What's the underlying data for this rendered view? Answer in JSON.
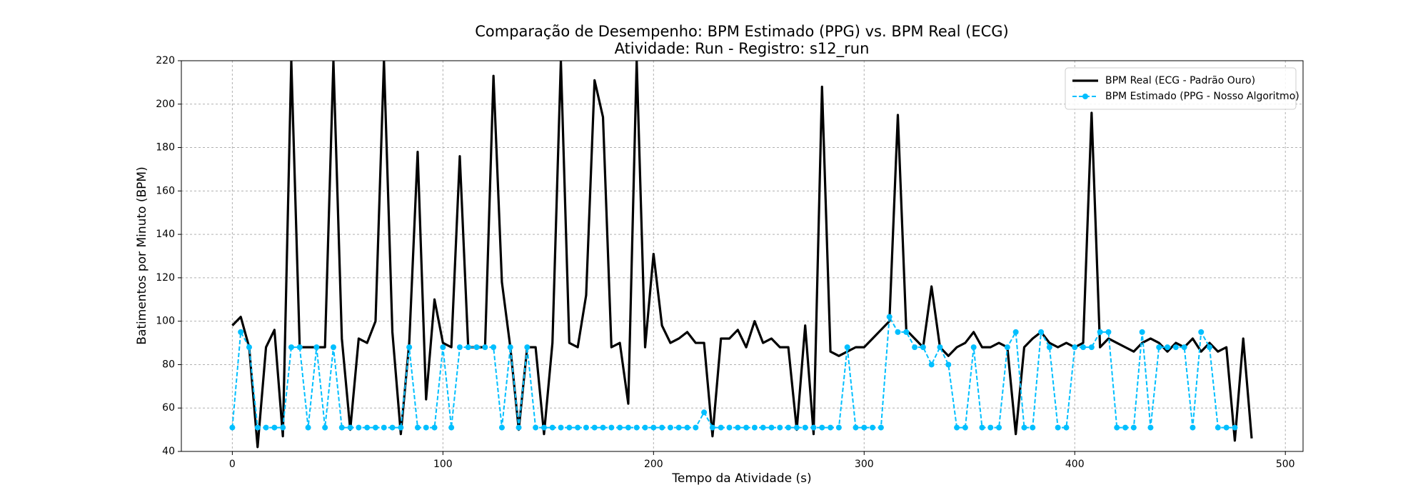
{
  "chart_data": {
    "type": "line",
    "title": "Comparação de Desempenho: BPM Estimado (PPG) vs. BPM Real (ECG)",
    "subtitle": "Atividade: Run - Registro: s12_run",
    "x_label": "Tempo da Atividade (s)",
    "y_label": "Batimentos por Minuto (BPM)",
    "x": [
      0,
      4,
      8,
      12,
      16,
      20,
      24,
      28,
      32,
      36,
      40,
      44,
      48,
      52,
      56,
      60,
      64,
      68,
      72,
      76,
      80,
      84,
      88,
      92,
      96,
      100,
      104,
      108,
      112,
      116,
      120,
      124,
      128,
      132,
      136,
      140,
      144,
      148,
      152,
      156,
      160,
      164,
      168,
      172,
      176,
      180,
      184,
      188,
      192,
      196,
      200,
      204,
      208,
      212,
      216,
      220,
      224,
      228,
      232,
      236,
      240,
      244,
      248,
      252,
      256,
      260,
      264,
      268,
      272,
      276,
      280,
      284,
      288,
      292,
      296,
      300,
      304,
      308,
      312,
      316,
      320,
      324,
      328,
      332,
      336,
      340,
      344,
      348,
      352,
      356,
      360,
      364,
      368,
      372,
      376,
      380,
      384,
      388,
      392,
      396,
      400,
      404,
      408,
      412,
      416,
      420,
      424,
      428,
      432,
      436,
      440,
      444,
      448,
      452,
      456,
      460,
      464,
      468,
      472,
      476,
      480,
      484
    ],
    "series": [
      {
        "name": "BPM Real (ECG - Padrão Ouro)",
        "color": "#000000",
        "dashed": false,
        "markers": false,
        "values": [
          98,
          102,
          88,
          42,
          88,
          96,
          47,
          220,
          88,
          88,
          88,
          88,
          220,
          92,
          50,
          92,
          90,
          100,
          220,
          95,
          48,
          90,
          178,
          64,
          110,
          90,
          88,
          176,
          88,
          88,
          88,
          213,
          118,
          88,
          50,
          88,
          88,
          48,
          90,
          220,
          90,
          88,
          112,
          211,
          194,
          88,
          90,
          62,
          220,
          88,
          131,
          98,
          90,
          92,
          95,
          90,
          90,
          47,
          92,
          92,
          96,
          88,
          100,
          90,
          92,
          88,
          88,
          50,
          98,
          48,
          208,
          86,
          84,
          86,
          88,
          88,
          92,
          96,
          100,
          195,
          96,
          92,
          88,
          116,
          88,
          84,
          88,
          90,
          95,
          88,
          88,
          90,
          88,
          48,
          88,
          92,
          95,
          90,
          88,
          90,
          88,
          90,
          196,
          88,
          92,
          90,
          88,
          86,
          90,
          92,
          90,
          86,
          90,
          88,
          92,
          86,
          90,
          86,
          88,
          45,
          92,
          46
        ]
      },
      {
        "name": "BPM Estimado (PPG - Nosso Algoritmo)",
        "color": "#00bfff",
        "dashed": true,
        "markers": true,
        "values": [
          51,
          95,
          88,
          51,
          51,
          51,
          51,
          88,
          88,
          51,
          88,
          51,
          88,
          51,
          51,
          51,
          51,
          51,
          51,
          51,
          51,
          88,
          51,
          51,
          51,
          88,
          51,
          88,
          88,
          88,
          88,
          88,
          51,
          88,
          51,
          88,
          51,
          51,
          51,
          51,
          51,
          51,
          51,
          51,
          51,
          51,
          51,
          51,
          51,
          51,
          51,
          51,
          51,
          51,
          51,
          51,
          58,
          51,
          51,
          51,
          51,
          51,
          51,
          51,
          51,
          51,
          51,
          51,
          51,
          51,
          51,
          51,
          51,
          88,
          51,
          51,
          51,
          51,
          102,
          95,
          95,
          88,
          88,
          80,
          88,
          80,
          51,
          51,
          88,
          51,
          51,
          51,
          88,
          95,
          51,
          51,
          95,
          88,
          51,
          51,
          88,
          88,
          88,
          95,
          95,
          51,
          51,
          51,
          95,
          51,
          88,
          88,
          88,
          88,
          51,
          95,
          88,
          51,
          51,
          51,
          null,
          null
        ]
      }
    ],
    "xlim": [
      -24.2,
      508.4
    ],
    "ylim": [
      40,
      220
    ],
    "xticks": [
      0,
      100,
      200,
      300,
      400,
      500
    ],
    "yticks": [
      40,
      60,
      80,
      100,
      120,
      140,
      160,
      180,
      200,
      220
    ],
    "grid": true,
    "legend": "upper right"
  }
}
